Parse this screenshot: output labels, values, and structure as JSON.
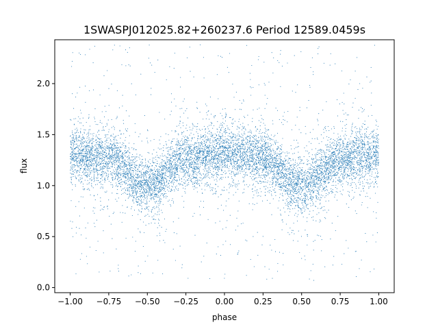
{
  "chart_data": {
    "type": "scatter",
    "title": "1SWASPJ012025.82+260237.6 Period 12589.0459s",
    "xlabel": "phase",
    "ylabel": "flux",
    "xlim": [
      -1.1,
      1.1
    ],
    "ylim": [
      -0.05,
      2.43
    ],
    "x_ticks": [
      -1.0,
      -0.75,
      -0.5,
      -0.25,
      0.0,
      0.25,
      0.5,
      0.75,
      1.0
    ],
    "x_tick_labels": [
      "−1.00",
      "−0.75",
      "−0.50",
      "−0.25",
      "0.00",
      "0.25",
      "0.50",
      "0.75",
      "1.00"
    ],
    "y_ticks": [
      0.0,
      0.5,
      1.0,
      1.5,
      2.0
    ],
    "y_tick_labels": [
      "0.0",
      "0.5",
      "1.0",
      "1.5",
      "2.0"
    ],
    "grid": false,
    "legend": "none",
    "point_color": "#1f77b4",
    "marker": "tiny dots, dense cloud",
    "phase_range": [
      -1.0,
      1.0
    ],
    "light_curve_envelope": {
      "phase": [
        -1.0,
        -0.75,
        -0.5,
        -0.25,
        0.0,
        0.25,
        0.5,
        0.75,
        1.0
      ],
      "mean_flux": [
        1.3,
        1.27,
        1.0,
        1.25,
        1.32,
        1.27,
        0.98,
        1.26,
        1.3
      ],
      "core_spread": 0.13,
      "outlier_range": [
        0.05,
        2.38
      ]
    }
  }
}
